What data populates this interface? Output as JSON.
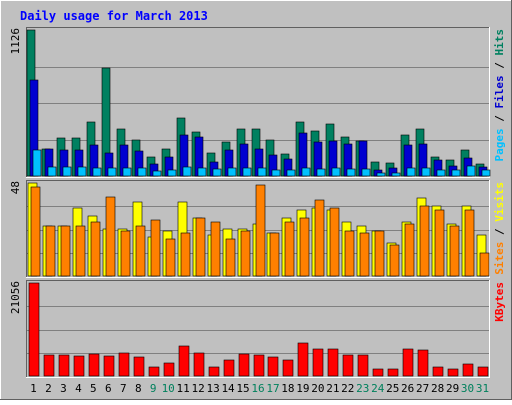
{
  "chart_data": {
    "type": "bar",
    "title": "Daily usage for March 2013",
    "categories": [
      "1",
      "2",
      "3",
      "4",
      "5",
      "6",
      "7",
      "8",
      "9",
      "10",
      "11",
      "12",
      "13",
      "14",
      "15",
      "16",
      "17",
      "18",
      "19",
      "20",
      "21",
      "22",
      "23",
      "24",
      "25",
      "26",
      "27",
      "28",
      "29",
      "30",
      "31"
    ],
    "weekend_days": [
      "9",
      "10",
      "16",
      "17",
      "23",
      "24",
      "30",
      "31"
    ],
    "panels": [
      {
        "id": "hits-panel",
        "ymax": 1126,
        "ymax_label": "1126",
        "ylabel_parts": [
          {
            "text": "Pages",
            "color": "#00c0ff"
          },
          {
            "text": " / ",
            "color": "#000000"
          },
          {
            "text": "Files",
            "color": "#0000d0"
          },
          {
            "text": " / ",
            "color": "#000000"
          },
          {
            "text": "Hits",
            "color": "#008060"
          }
        ],
        "series": [
          {
            "name": "Hits",
            "color": "#008060",
            "values": [
              1126,
              210,
              290,
              290,
              420,
              830,
              360,
              280,
              150,
              210,
              450,
              340,
              180,
              260,
              360,
              360,
              280,
              170,
              420,
              350,
              400,
              300,
              270,
              110,
              100,
              320,
              360,
              150,
              120,
              200,
              90
            ]
          },
          {
            "name": "Files",
            "color": "#0000d0",
            "values": [
              740,
              210,
              200,
              200,
              240,
              180,
              240,
              190,
              95,
              150,
              320,
              300,
              110,
              200,
              250,
              210,
              160,
              130,
              330,
              260,
              270,
              250,
              270,
              50,
              60,
              240,
              250,
              120,
              80,
              140,
              70
            ]
          },
          {
            "name": "Pages",
            "color": "#00c0ff",
            "values": [
              200,
              70,
              70,
              70,
              60,
              60,
              60,
              60,
              40,
              50,
              70,
              60,
              55,
              65,
              60,
              60,
              50,
              45,
              60,
              55,
              60,
              55,
              55,
              25,
              25,
              60,
              60,
              50,
              45,
              80,
              45
            ]
          }
        ]
      },
      {
        "id": "visits-panel",
        "ymax": 48,
        "ymax_label": "48",
        "ylabel_parts": [
          {
            "text": "Sites",
            "color": "#ff8000"
          },
          {
            "text": " / ",
            "color": "#000000"
          },
          {
            "text": "Visits",
            "color": "#ffff00"
          }
        ],
        "series": [
          {
            "name": "Visits",
            "color": "#ffff00",
            "values": [
              48,
              26,
              26,
              35,
              31,
              24,
              24,
              38,
              20,
              23,
              38,
              30,
              21,
              24,
              24,
              27,
              22,
              30,
              34,
              35,
              34,
              28,
              26,
              23,
              17,
              28,
              40,
              36,
              27,
              36,
              21
            ]
          },
          {
            "name": "Sites",
            "color": "#ff8000",
            "values": [
              46,
              26,
              26,
              26,
              28,
              41,
              23,
              26,
              29,
              19,
              22,
              30,
              28,
              19,
              23,
              47,
              22,
              28,
              30,
              39,
              35,
              23,
              22,
              23,
              16,
              27,
              36,
              34,
              26,
              34,
              12
            ]
          }
        ]
      },
      {
        "id": "kbytes-panel",
        "ymax": 21056,
        "ymax_label": "21056",
        "ylabel_parts": [
          {
            "text": "KBytes",
            "color": "#ff0000"
          }
        ],
        "series": [
          {
            "name": "KBytes",
            "color": "#ff0000",
            "values": [
              21056,
              4700,
              4700,
              4500,
              4900,
              4500,
              5300,
              4200,
              2100,
              3000,
              6800,
              5200,
              2100,
              3600,
              5000,
              4800,
              4300,
              3600,
              7400,
              6000,
              6000,
              4800,
              4700,
              1500,
              1500,
              6000,
              5800,
              2100,
              1500,
              2700,
              2000
            ]
          }
        ]
      }
    ]
  },
  "colors": {
    "page_bg": "#c0c0c0",
    "plot_bg": "#c0c0c0",
    "grid": "#808080",
    "title": "#0000ff",
    "weekday_label": "#000000",
    "weekend_label": "#00805c",
    "bevel_light": "#ffffff",
    "bevel_dark": "#606060"
  }
}
